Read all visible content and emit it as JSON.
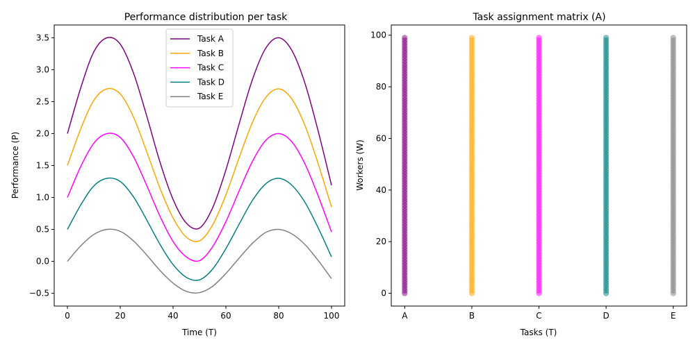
{
  "chart_data": [
    {
      "type": "line",
      "title": "Performance distribution per task",
      "xlabel": "Time (T)",
      "ylabel": "Performance (P)",
      "xlim": [
        -5,
        105
      ],
      "ylim": [
        -0.7,
        3.7
      ],
      "xticks": [
        0,
        20,
        40,
        60,
        80,
        100
      ],
      "yticks": [
        -0.5,
        0.0,
        0.5,
        1.0,
        1.5,
        2.0,
        2.5,
        3.0,
        3.5
      ],
      "xtick_labels": [
        "0",
        "20",
        "40",
        "60",
        "80",
        "100"
      ],
      "ytick_labels": [
        "−0.5",
        "0.0",
        "0.5",
        "1.0",
        "1.5",
        "2.0",
        "2.5",
        "3.0",
        "3.5"
      ],
      "legend_position": "top-center",
      "grid": false,
      "series": [
        {
          "name": "Task A",
          "color": "#800080",
          "x": [
            0,
            5,
            10,
            15,
            20,
            25,
            30,
            35,
            40,
            45,
            50,
            55,
            60,
            65,
            70,
            75,
            80,
            85,
            90,
            95,
            100
          ],
          "y": [
            2.0,
            2.71,
            3.28,
            3.5,
            3.4,
            2.95,
            2.28,
            1.56,
            0.97,
            0.6,
            0.52,
            0.84,
            1.43,
            2.15,
            2.84,
            3.33,
            3.5,
            3.3,
            2.78,
            2.03,
            1.19
          ]
        },
        {
          "name": "Task B",
          "color": "#ffa500",
          "x": [
            0,
            5,
            10,
            15,
            20,
            25,
            30,
            35,
            40,
            45,
            50,
            55,
            60,
            65,
            70,
            75,
            80,
            85,
            90,
            95,
            100
          ],
          "y": [
            1.5,
            2.07,
            2.52,
            2.7,
            2.62,
            2.26,
            1.72,
            1.15,
            0.68,
            0.38,
            0.32,
            0.57,
            1.04,
            1.62,
            2.17,
            2.56,
            2.7,
            2.54,
            2.12,
            1.52,
            0.85
          ]
        },
        {
          "name": "Task C",
          "color": "#ff00ff",
          "x": [
            0,
            5,
            10,
            15,
            20,
            25,
            30,
            35,
            40,
            45,
            50,
            55,
            60,
            65,
            70,
            75,
            80,
            85,
            90,
            95,
            100
          ],
          "y": [
            1.0,
            1.48,
            1.85,
            2.0,
            1.94,
            1.64,
            1.19,
            0.71,
            0.31,
            0.07,
            0.01,
            0.23,
            0.62,
            1.1,
            1.56,
            1.89,
            2.0,
            1.87,
            1.52,
            1.02,
            0.46
          ]
        },
        {
          "name": "Task D",
          "color": "#008080",
          "x": [
            0,
            5,
            10,
            15,
            20,
            25,
            30,
            35,
            40,
            45,
            50,
            55,
            60,
            65,
            70,
            75,
            80,
            85,
            90,
            95,
            100
          ],
          "y": [
            0.5,
            0.88,
            1.18,
            1.3,
            1.25,
            1.01,
            0.65,
            0.27,
            -0.05,
            -0.25,
            -0.29,
            -0.12,
            0.2,
            0.58,
            0.95,
            1.21,
            1.3,
            1.19,
            0.92,
            0.52,
            0.07
          ]
        },
        {
          "name": "Task E",
          "color": "#808080",
          "x": [
            0,
            5,
            10,
            15,
            20,
            25,
            30,
            35,
            40,
            45,
            50,
            55,
            60,
            65,
            70,
            75,
            80,
            85,
            90,
            95,
            100
          ],
          "y": [
            0.0,
            0.24,
            0.42,
            0.5,
            0.47,
            0.32,
            0.1,
            -0.14,
            -0.34,
            -0.47,
            -0.49,
            -0.39,
            -0.19,
            0.05,
            0.28,
            0.45,
            0.5,
            0.43,
            0.26,
            0.01,
            -0.27
          ]
        }
      ]
    },
    {
      "type": "scatter",
      "title": "Task assignment matrix (A)",
      "xlabel": "Tasks (T)",
      "ylabel": "Workers (W)",
      "categories": [
        "A",
        "B",
        "C",
        "D",
        "E"
      ],
      "xlim": [
        -0.2,
        4.2
      ],
      "ylim": [
        -4.95,
        103.95
      ],
      "yticks": [
        0,
        20,
        40,
        60,
        80,
        100
      ],
      "ytick_labels": [
        "0",
        "20",
        "40",
        "60",
        "80",
        "100"
      ],
      "workers_range": [
        0,
        99
      ],
      "alpha": 0.5,
      "colors": [
        "#800080",
        "#ffa500",
        "#ff00ff",
        "#008080",
        "#808080"
      ]
    }
  ]
}
